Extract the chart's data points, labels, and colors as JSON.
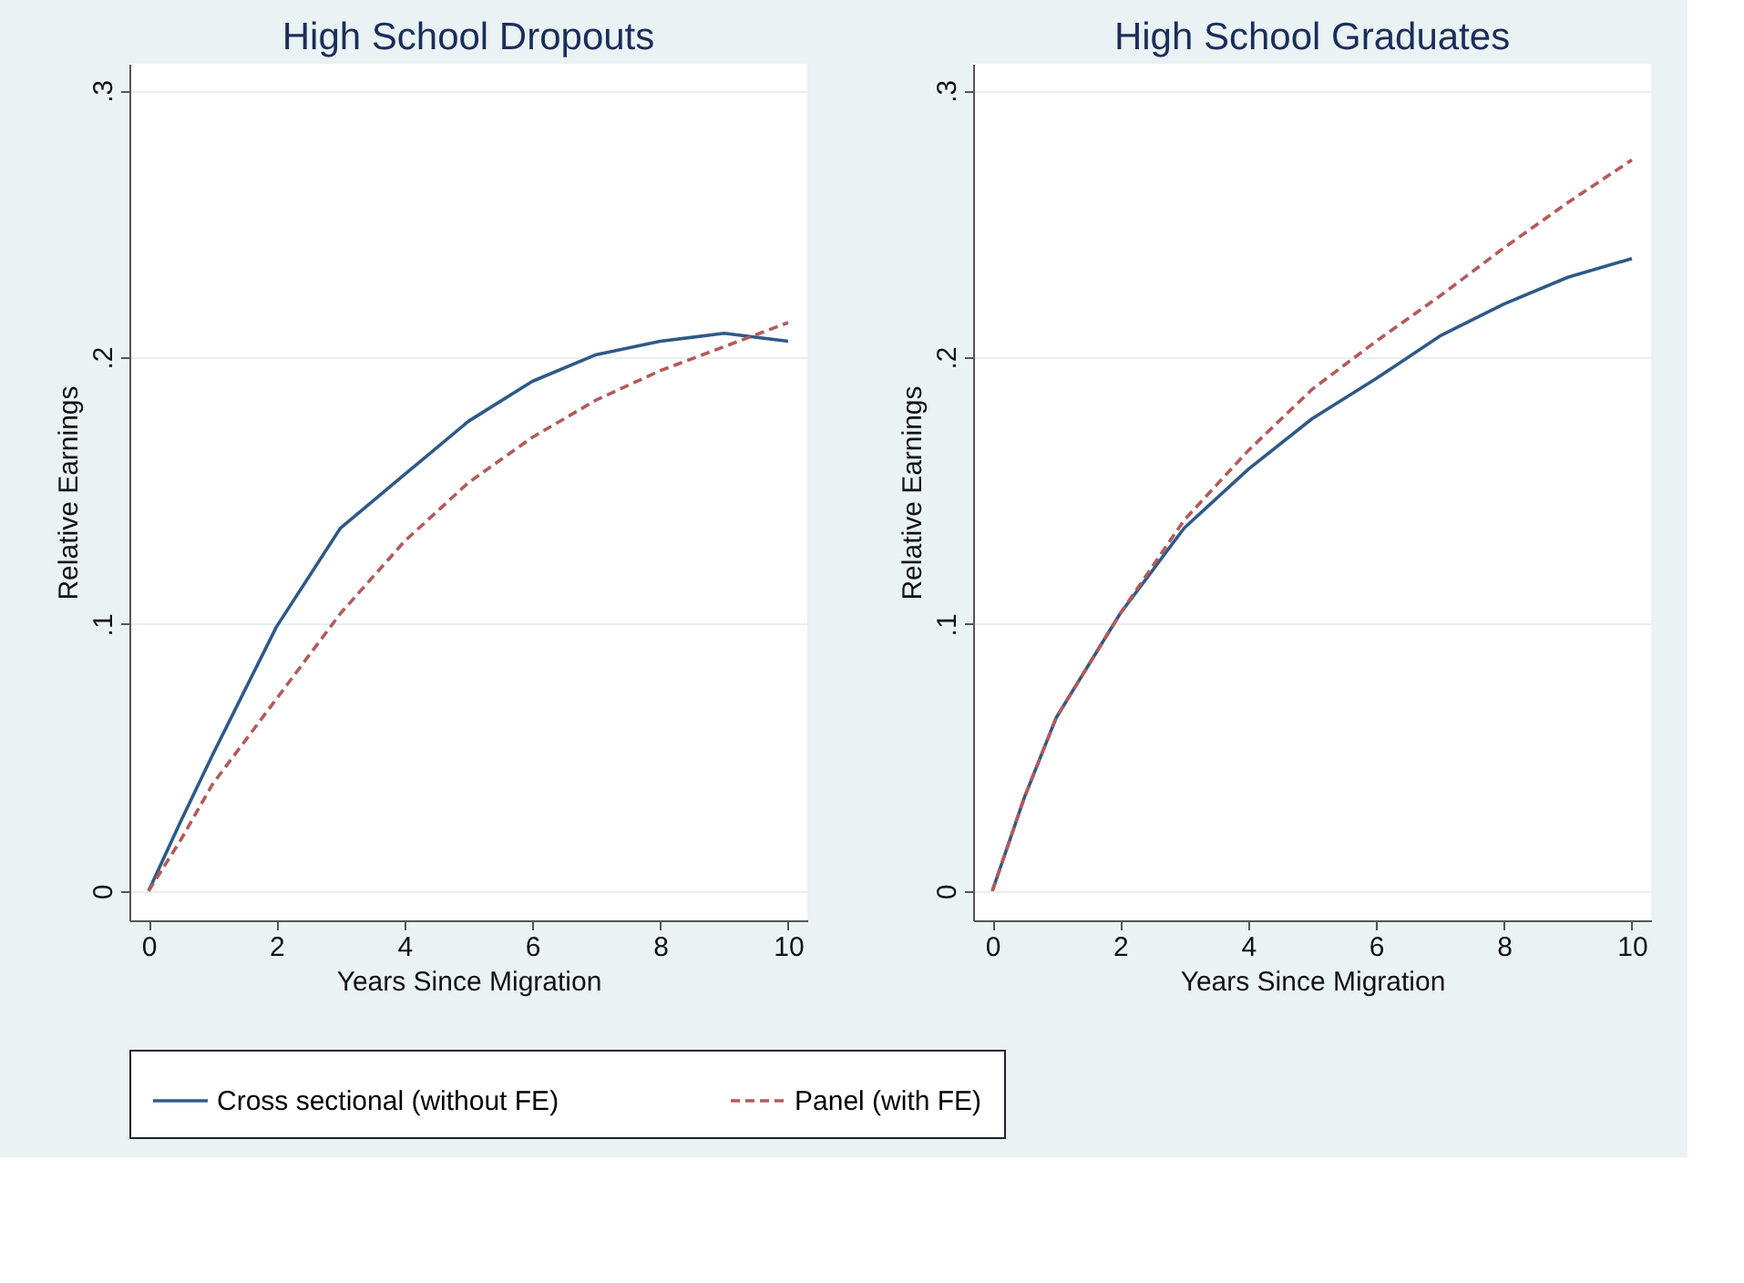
{
  "chart_data": [
    {
      "type": "line",
      "title": "High School Dropouts",
      "xlabel": "Years Since Migration",
      "ylabel": "Relative Earnings",
      "x": [
        0,
        0.5,
        1,
        2,
        3,
        4,
        5,
        6,
        7,
        8,
        9,
        10
      ],
      "series": [
        {
          "name": "Cross sectional (without FE)",
          "color": "#2e5a87",
          "line_style": "solid",
          "values": [
            0,
            0.026,
            0.051,
            0.099,
            0.136,
            0.156,
            0.176,
            0.191,
            0.201,
            0.206,
            0.209,
            0.206
          ]
        },
        {
          "name": "Panel (with FE)",
          "color": "#b45a5a",
          "line_style": "dashed",
          "values": [
            0,
            0.019,
            0.04,
            0.072,
            0.104,
            0.131,
            0.153,
            0.17,
            0.184,
            0.195,
            0.204,
            0.213
          ]
        }
      ],
      "xlim": [
        -0.3,
        10.3
      ],
      "xticks": [
        0,
        2,
        4,
        6,
        8,
        10
      ],
      "ylim": [
        -0.011,
        0.31
      ],
      "yticks": [
        0,
        {
          "value": 0.1,
          "label": ".1"
        },
        {
          "value": 0.2,
          "label": ".2"
        },
        {
          "value": 0.3,
          "label": ".3"
        }
      ],
      "grid": "y",
      "legend": "bottom"
    },
    {
      "type": "line",
      "title": "High School Graduates",
      "xlabel": "Years Since Migration",
      "ylabel": "Relative Earnings",
      "x": [
        0,
        0.5,
        1,
        2,
        3,
        4,
        5,
        6,
        7,
        8,
        9,
        10
      ],
      "series": [
        {
          "name": "Cross sectional (without FE)",
          "color": "#2e5a87",
          "line_style": "solid",
          "values": [
            0,
            0.035,
            0.065,
            0.104,
            0.136,
            0.158,
            0.177,
            0.192,
            0.208,
            0.22,
            0.23,
            0.237
          ]
        },
        {
          "name": "Panel (with FE)",
          "color": "#b45a5a",
          "line_style": "dashed",
          "values": [
            0,
            0.035,
            0.065,
            0.104,
            0.139,
            0.165,
            0.188,
            0.206,
            0.223,
            0.241,
            0.258,
            0.274
          ]
        }
      ],
      "xlim": [
        -0.3,
        10.3
      ],
      "xticks": [
        0,
        2,
        4,
        6,
        8,
        10
      ],
      "ylim": [
        -0.011,
        0.31
      ],
      "yticks": [
        0,
        {
          "value": 0.1,
          "label": ".1"
        },
        {
          "value": 0.2,
          "label": ".2"
        },
        {
          "value": 0.3,
          "label": ".3"
        }
      ],
      "grid": "y",
      "legend": "bottom"
    }
  ]
}
